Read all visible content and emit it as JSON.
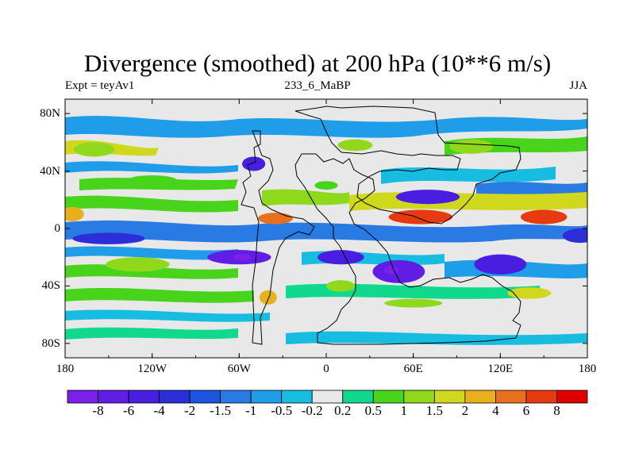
{
  "chart_data": {
    "type": "heatmap",
    "title": "Divergence (smoothed) at 200 hPa (10**6 m/s)",
    "left_subtitle": "Expt = teyAv1",
    "center_subtitle": "233_6_MaBP",
    "right_subtitle": "JJA",
    "x_range": [
      -180,
      180
    ],
    "y_range": [
      -90,
      90
    ],
    "x_ticks": [
      {
        "value": -180,
        "label": "180"
      },
      {
        "value": -120,
        "label": "120W"
      },
      {
        "value": -60,
        "label": "60W"
      },
      {
        "value": 0,
        "label": "0"
      },
      {
        "value": 60,
        "label": "60E"
      },
      {
        "value": 120,
        "label": "120E"
      },
      {
        "value": 180,
        "label": "180"
      }
    ],
    "y_ticks": [
      {
        "value": 80,
        "label": "80N"
      },
      {
        "value": 40,
        "label": "40N"
      },
      {
        "value": 0,
        "label": "0"
      },
      {
        "value": -40,
        "label": "40S"
      },
      {
        "value": -80,
        "label": "80S"
      }
    ],
    "colorbar_labels": [
      "-8",
      "-6",
      "-4",
      "-2",
      "-1.5",
      "-1",
      "-0.5",
      "-0.2",
      "0.2",
      "0.5",
      "1",
      "1.5",
      "2",
      "4",
      "6",
      "8"
    ],
    "colorbar_colors": [
      "#7a20e8",
      "#5f1de6",
      "#4a1ee0",
      "#2c2ed8",
      "#1c55e0",
      "#2a7ae4",
      "#1f9de8",
      "#17bde0",
      "#e8e8e8",
      "#10d88c",
      "#49d41c",
      "#8fd81c",
      "#cfd81c",
      "#e8b01c",
      "#e8701c",
      "#e83a10",
      "#e00000"
    ],
    "regions": [
      {
        "level": "-6",
        "lon": -60,
        "lat": -20,
        "rx": 22,
        "ry": 5
      },
      {
        "level": "-8",
        "lon": -58,
        "lat": -20,
        "rx": 6,
        "ry": 2.5
      },
      {
        "level": "-6",
        "lon": 50,
        "lat": -30,
        "rx": 18,
        "ry": 8
      },
      {
        "level": "-8",
        "lon": 45,
        "lat": -29,
        "rx": 5,
        "ry": 3
      },
      {
        "level": "-4",
        "lon": 10,
        "lat": -20,
        "rx": 16,
        "ry": 5
      },
      {
        "level": "-4",
        "lon": 120,
        "lat": -25,
        "rx": 18,
        "ry": 7
      },
      {
        "level": "-4",
        "lon": 70,
        "lat": 22,
        "rx": 22,
        "ry": 5
      },
      {
        "level": "-4",
        "lon": -50,
        "lat": 45,
        "rx": 8,
        "ry": 5
      },
      {
        "level": "-2",
        "lon": -150,
        "lat": -7,
        "rx": 25,
        "ry": 4
      },
      {
        "level": "-2",
        "lon": 175,
        "lat": -5,
        "rx": 12,
        "ry": 5
      },
      {
        "level": "6",
        "lon": 65,
        "lat": 8,
        "rx": 22,
        "ry": 5
      },
      {
        "level": "6",
        "lon": 150,
        "lat": 8,
        "rx": 16,
        "ry": 5
      },
      {
        "level": "4",
        "lon": -35,
        "lat": 7,
        "rx": 12,
        "ry": 4
      },
      {
        "level": "2",
        "lon": -175,
        "lat": 10,
        "rx": 8,
        "ry": 5
      },
      {
        "level": "2",
        "lon": -40,
        "lat": -48,
        "rx": 6,
        "ry": 5
      },
      {
        "level": "1.5",
        "lon": 140,
        "lat": -45,
        "rx": 15,
        "ry": 4
      },
      {
        "level": "1",
        "lon": -130,
        "lat": -25,
        "rx": 22,
        "ry": 5
      },
      {
        "level": "1",
        "lon": 60,
        "lat": -52,
        "rx": 20,
        "ry": 3
      },
      {
        "level": "1",
        "lon": 10,
        "lat": -40,
        "rx": 10,
        "ry": 4
      },
      {
        "level": "1",
        "lon": 20,
        "lat": 58,
        "rx": 12,
        "ry": 4
      },
      {
        "level": "1",
        "lon": 100,
        "lat": 57,
        "rx": 15,
        "ry": 5
      },
      {
        "level": "1",
        "lon": -160,
        "lat": 55,
        "rx": 14,
        "ry": 5
      },
      {
        "level": "0.5",
        "lon": -120,
        "lat": 33,
        "rx": 18,
        "ry": 4
      },
      {
        "level": "0.5",
        "lon": 0,
        "lat": 30,
        "rx": 8,
        "ry": 3
      }
    ]
  }
}
